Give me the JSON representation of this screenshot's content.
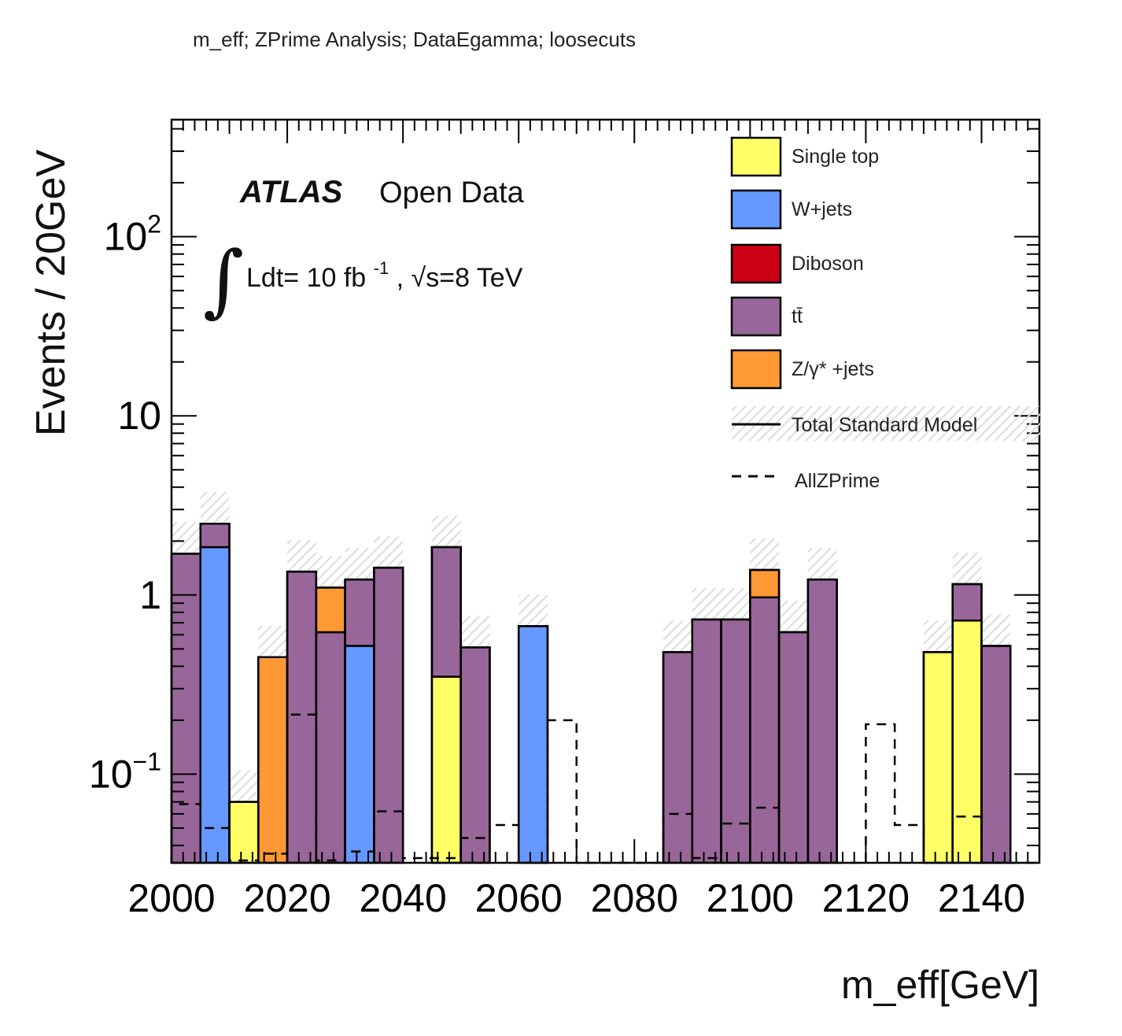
{
  "header": {
    "title": "m_eff; ZPrime Analysis; DataEgamma; loosecuts"
  },
  "annotations": {
    "atlas": "ATLAS",
    "open_data": "Open Data",
    "lumi_prefix": "Ldt= 10 fb",
    "lumi_exp": "-1",
    "energy": ", √s=8 TeV"
  },
  "chart_data": {
    "type": "bar",
    "stacked": true,
    "histogram": true,
    "xlabel": "m_eff[GeV]",
    "ylabel": "Events / 20GeV",
    "xlim": [
      2000,
      2150
    ],
    "ylim": [
      0.032,
      450
    ],
    "yscale": "log",
    "bin_width": 5,
    "bin_edges": [
      2000,
      2005,
      2010,
      2015,
      2020,
      2025,
      2030,
      2035,
      2040,
      2045,
      2050,
      2055,
      2060,
      2065,
      2070,
      2075,
      2080,
      2085,
      2090,
      2095,
      2100,
      2105,
      2110,
      2115,
      2120,
      2125,
      2130,
      2135,
      2140,
      2145,
      2150
    ],
    "x_tick_labels": [
      "2000",
      "2020",
      "2040",
      "2060",
      "2080",
      "2100",
      "2120",
      "2140"
    ],
    "y_tick_labels": [
      {
        "base": "10",
        "exp": "−1",
        "value": 0.1
      },
      {
        "base": "1",
        "exp": "",
        "value": 1
      },
      {
        "base": "10",
        "exp": "",
        "value": 10
      },
      {
        "base": "10",
        "exp": "2",
        "value": 100
      }
    ],
    "legend_position": "top-right",
    "series": [
      {
        "name": "Single top",
        "color": "#ffff66",
        "values": [
          0,
          0,
          0.07,
          0,
          0,
          0,
          0,
          0,
          0,
          0.35,
          0,
          0,
          0,
          0,
          0,
          0,
          0,
          0,
          0,
          0,
          0,
          0,
          0,
          0,
          0,
          0,
          0.48,
          0.72,
          0,
          0
        ]
      },
      {
        "name": "W+jets",
        "color": "#6699ff",
        "values": [
          0,
          1.85,
          0,
          0,
          0,
          0,
          0.52,
          0,
          0,
          0,
          0,
          0,
          0.67,
          0,
          0,
          0,
          0,
          0,
          0,
          0,
          0,
          0,
          0,
          0,
          0,
          0,
          0,
          0,
          0,
          0
        ]
      },
      {
        "name": "Diboson",
        "color": "#cc0015",
        "values": [
          0,
          0,
          0,
          0,
          0,
          0,
          0,
          0,
          0,
          0,
          0,
          0,
          0,
          0,
          0,
          0,
          0,
          0,
          0,
          0,
          0,
          0,
          0,
          0,
          0,
          0,
          0,
          0,
          0,
          0
        ]
      },
      {
        "name": "tt̄",
        "color": "#996699",
        "values": [
          1.7,
          0.65,
          0,
          0,
          1.35,
          0.62,
          0.7,
          1.42,
          0,
          1.5,
          0.51,
          0,
          0,
          0,
          0,
          0,
          0,
          0.48,
          0.73,
          0.73,
          0.97,
          0.62,
          1.22,
          0,
          0,
          0,
          0,
          0.43,
          0.52,
          0
        ]
      },
      {
        "name": "Z/γ* +jets",
        "color": "#ff9933",
        "values": [
          0,
          0,
          0,
          0.45,
          0,
          0.48,
          0,
          0,
          0,
          0,
          0,
          0,
          0,
          0,
          0,
          0,
          0,
          0,
          0,
          0,
          0.41,
          0,
          0,
          0,
          0,
          0,
          0,
          0,
          0,
          0
        ]
      }
    ],
    "total_label": "Total Standard Model",
    "signal": {
      "name": "AllZPrime",
      "style": "dashed",
      "values": [
        0.068,
        0.05,
        0.033,
        0.036,
        0.215,
        0.033,
        0.037,
        0.062,
        0.034,
        0.034,
        0.044,
        0.052,
        0,
        0.2,
        0,
        0,
        0,
        0.06,
        0.034,
        0.053,
        0.065,
        0,
        0,
        0,
        0.19,
        0.052,
        0,
        0.058,
        0,
        0
      ]
    }
  }
}
